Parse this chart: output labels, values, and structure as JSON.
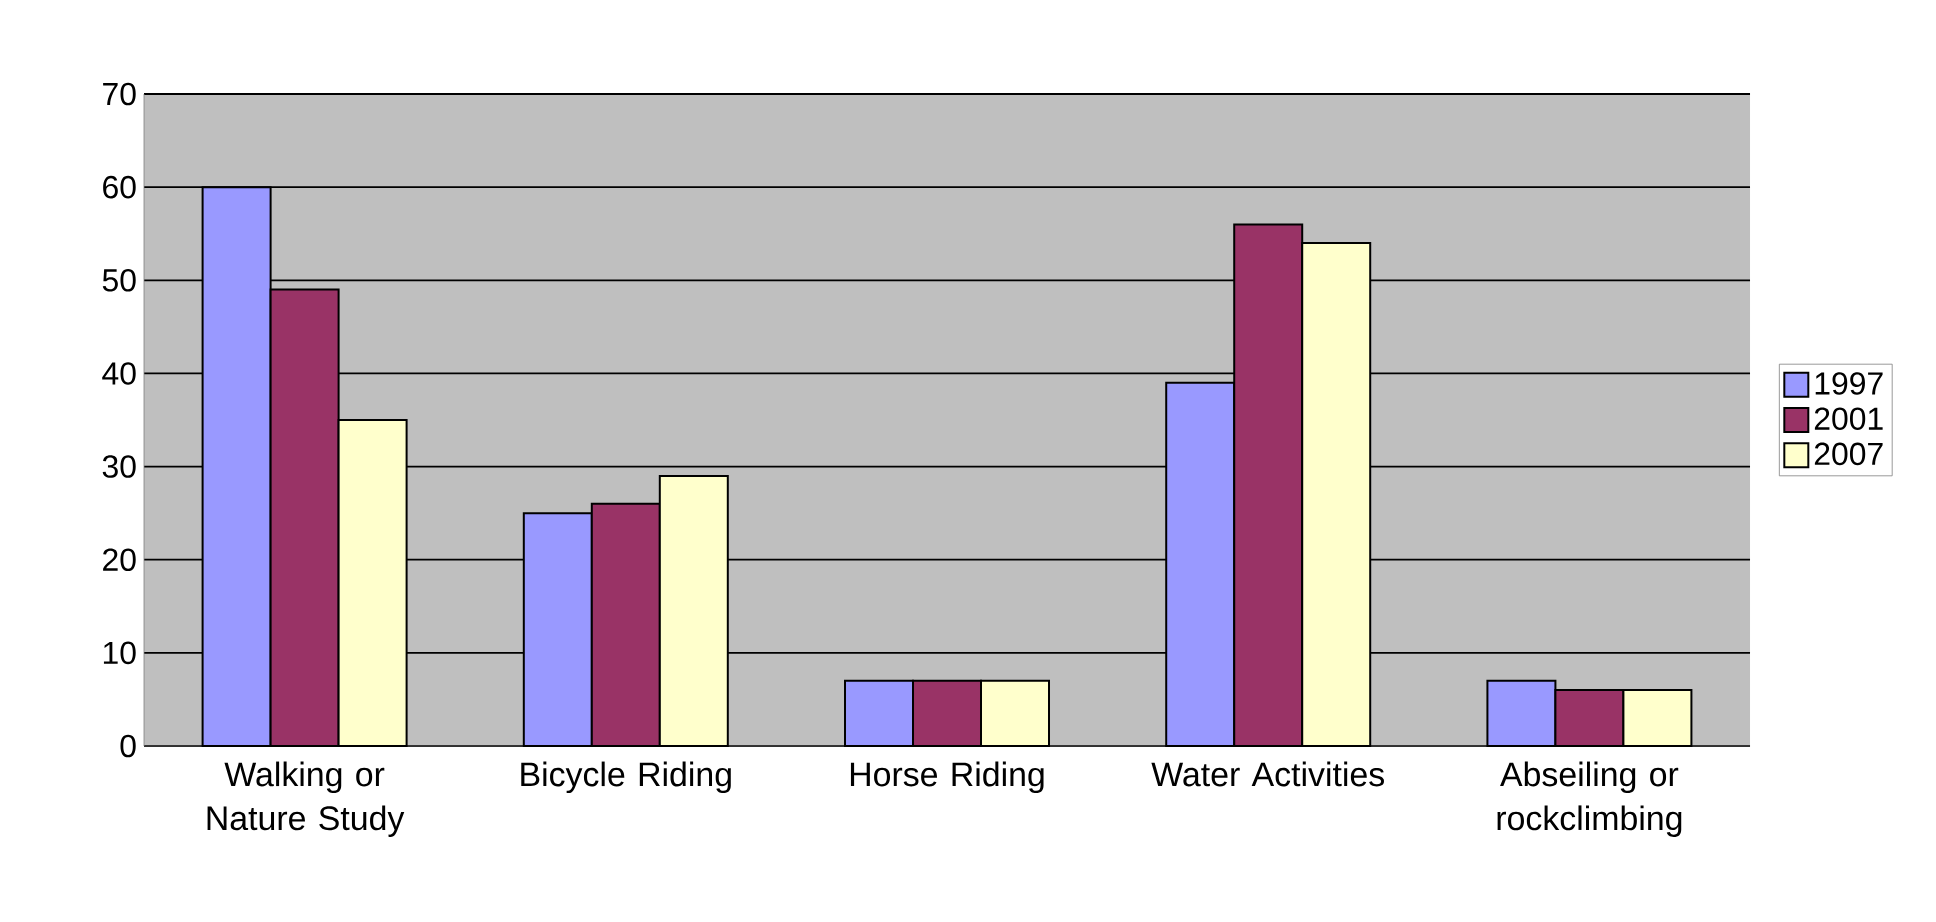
{
  "chart_data": {
    "type": "bar",
    "categories": [
      "Walking or Nature Study",
      "Bicycle Riding",
      "Horse Riding",
      "Water Activities",
      "Abseiling or rockclimbing"
    ],
    "series": [
      {
        "name": "1997",
        "color": "#9999ff",
        "values": [
          60,
          25,
          7,
          39,
          7
        ]
      },
      {
        "name": "2001",
        "color": "#993366",
        "values": [
          49,
          26,
          7,
          56,
          6
        ]
      },
      {
        "name": "2007",
        "color": "#ffffcc",
        "values": [
          35,
          29,
          7,
          54,
          6
        ]
      }
    ],
    "ylim": [
      0,
      70
    ],
    "yticks": [
      0,
      10,
      20,
      30,
      40,
      50,
      60,
      70
    ],
    "grid": "y",
    "legend": "right"
  }
}
